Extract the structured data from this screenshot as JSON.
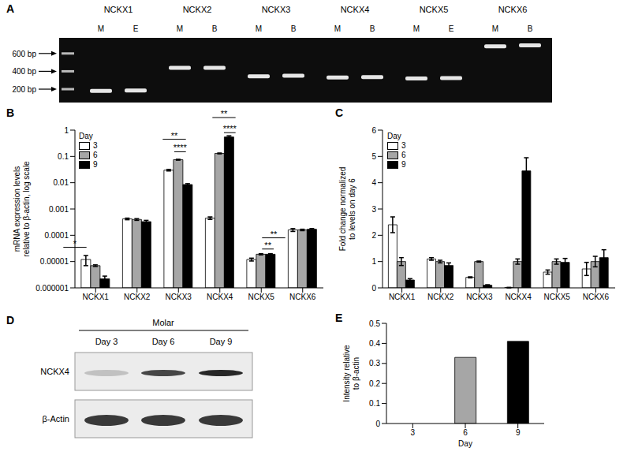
{
  "chart_data": [
    {
      "panel": "A",
      "type": "gel",
      "ylim": [
        50,
        775
      ],
      "yticks": [
        {
          "value": 600,
          "label": "600 bp"
        },
        {
          "value": 400,
          "label": "400 bp"
        },
        {
          "value": 200,
          "label": "200 bp"
        }
      ],
      "groups": [
        {
          "name": "NCKX1",
          "lanes": [
            "M",
            "E"
          ],
          "band_bp": [
            180,
            185
          ]
        },
        {
          "name": "NCKX2",
          "lanes": [
            "M",
            "B"
          ],
          "band_bp": [
            440,
            440
          ]
        },
        {
          "name": "NCKX3",
          "lanes": [
            "M",
            "B"
          ],
          "band_bp": [
            345,
            350
          ]
        },
        {
          "name": "NCKX4",
          "lanes": [
            "M",
            "B"
          ],
          "band_bp": [
            330,
            335
          ]
        },
        {
          "name": "NCKX5",
          "lanes": [
            "M",
            "E"
          ],
          "band_bp": [
            320,
            325
          ]
        },
        {
          "name": "NCKX6",
          "lanes": [
            "M",
            "B"
          ],
          "band_bp": [
            680,
            690
          ]
        }
      ]
    },
    {
      "panel": "B",
      "type": "bar",
      "log": "y",
      "categories": [
        "NCKX1",
        "NCKX2",
        "NCKX3",
        "NCKX4",
        "NCKX5",
        "NCKX6"
      ],
      "series": [
        {
          "name": "3",
          "color": "#ffffff",
          "values": [
            1.2e-05,
            0.00042,
            0.03,
            0.00045,
            1.2e-05,
            0.00016
          ],
          "errors": [
            5e-06,
            3e-05,
            0.002,
            5e-05,
            1.5e-06,
            2e-05
          ]
        },
        {
          "name": "6",
          "color": "#a6a6a6",
          "values": [
            7e-06,
            0.0004,
            0.075,
            0.13,
            1.9e-05,
            0.00016
          ],
          "errors": [
            5e-07,
            3e-05,
            0.003,
            0.005,
            1e-06,
            1e-05
          ]
        },
        {
          "name": "9",
          "color": "#000000",
          "values": [
            2.2e-06,
            0.00033,
            0.0085,
            0.55,
            1.9e-05,
            0.00017
          ],
          "errors": [
            6e-07,
            4e-05,
            0.0007,
            0.06,
            1e-06,
            1e-05
          ]
        }
      ],
      "ylim": [
        1e-06,
        1
      ],
      "yticks": [
        1,
        0.1,
        0.01,
        0.001,
        0.0001,
        1e-05,
        1e-06
      ],
      "ylabel": [
        "mRNA expression levels",
        "relative to β-actin, log scale"
      ],
      "legend": "upper left",
      "legend_title": "Day",
      "annotations": [
        {
          "text": "*",
          "category": "NCKX1",
          "from": "3",
          "to": "9",
          "y": 3.5e-05
        },
        {
          "text": "****",
          "category": "NCKX3",
          "from": "6",
          "to": "9",
          "y": 0.15
        },
        {
          "text": "**",
          "category": "NCKX3",
          "from": "3",
          "to": "9",
          "y": 0.45
        },
        {
          "text": "****",
          "category": "NCKX4",
          "from": "6",
          "to": "9",
          "y": 0.8
        },
        {
          "text": "**",
          "category": "NCKX4",
          "from": "3",
          "to": "9",
          "y": 3
        },
        {
          "text": "**",
          "category": "NCKX5",
          "from": "3",
          "to": "6",
          "y": 3e-05
        },
        {
          "text": "**",
          "category": "NCKX5",
          "from": "3",
          "to": "9",
          "y": 8e-05
        }
      ]
    },
    {
      "panel": "C",
      "type": "bar",
      "categories": [
        "NCKX1",
        "NCKX2",
        "NCKX3",
        "NCKX4",
        "NCKX5",
        "NCKX6"
      ],
      "series": [
        {
          "name": "3",
          "color": "#ffffff",
          "values": [
            2.4,
            1.1,
            0.4,
            0.01,
            0.6,
            0.72
          ],
          "errors": [
            0.3,
            0.05,
            0.02,
            0.01,
            0.08,
            0.25
          ]
        },
        {
          "name": "6",
          "color": "#a6a6a6",
          "values": [
            1.0,
            1.0,
            1.0,
            1.0,
            1.0,
            1.0
          ],
          "errors": [
            0.15,
            0.05,
            0.02,
            0.1,
            0.1,
            0.2
          ]
        },
        {
          "name": "9",
          "color": "#000000",
          "values": [
            0.3,
            0.85,
            0.1,
            4.45,
            0.97,
            1.15
          ],
          "errors": [
            0.05,
            0.1,
            0.02,
            0.5,
            0.15,
            0.3
          ]
        }
      ],
      "ylim": [
        0,
        6
      ],
      "yticks": [
        0,
        1,
        2,
        3,
        4,
        5,
        6
      ],
      "ylabel": [
        "Fold change normalized",
        "to levels on day 6"
      ],
      "legend": "upper left",
      "legend_title": "Day"
    },
    {
      "panel": "D",
      "type": "blot",
      "title": "Molar",
      "lanes": [
        "Day 3",
        "Day 6",
        "Day 9"
      ],
      "rows": [
        "NCKX4",
        "β-Actin"
      ]
    },
    {
      "panel": "E",
      "type": "bar",
      "categories": [
        "3",
        "6",
        "9"
      ],
      "values": [
        0,
        0.33,
        0.41
      ],
      "colors": [
        "#ffffff",
        "#a6a6a6",
        "#000000"
      ],
      "ylim": [
        0,
        0.5
      ],
      "yticks": [
        0,
        0.1,
        0.2,
        0.3,
        0.4,
        0.5
      ],
      "xlabel": "Day",
      "ylabel": [
        "Intensity relative",
        "to β-actin"
      ]
    }
  ]
}
